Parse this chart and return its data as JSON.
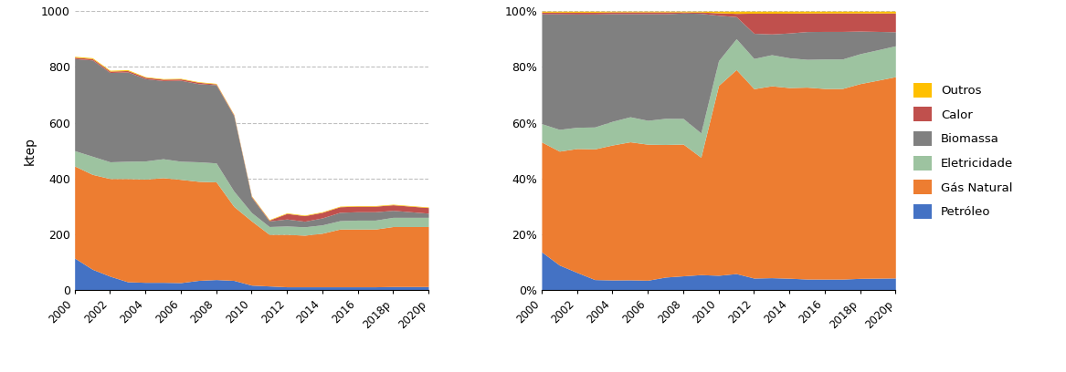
{
  "years": [
    2000,
    2001,
    2002,
    2003,
    2004,
    2005,
    2006,
    2007,
    2008,
    2009,
    2010,
    2011,
    2012,
    2013,
    2014,
    2015,
    2016,
    2017,
    2018,
    2019,
    2020
  ],
  "petroleo": [
    115,
    75,
    50,
    30,
    28,
    28,
    27,
    35,
    38,
    35,
    18,
    15,
    12,
    12,
    12,
    12,
    12,
    12,
    13,
    13,
    13
  ],
  "gas_natural": [
    330,
    340,
    350,
    370,
    370,
    375,
    370,
    355,
    350,
    265,
    230,
    185,
    188,
    185,
    192,
    207,
    207,
    207,
    215,
    215,
    215
  ],
  "eletricidade": [
    55,
    65,
    60,
    62,
    65,
    68,
    65,
    70,
    68,
    55,
    30,
    28,
    30,
    30,
    30,
    30,
    32,
    32,
    33,
    33,
    33
  ],
  "biomassa": [
    330,
    345,
    320,
    320,
    295,
    280,
    290,
    280,
    280,
    270,
    55,
    20,
    25,
    20,
    25,
    30,
    30,
    30,
    25,
    20,
    15
  ],
  "calor": [
    5,
    5,
    5,
    5,
    5,
    5,
    5,
    5,
    3,
    3,
    3,
    3,
    20,
    20,
    20,
    20,
    20,
    20,
    20,
    20,
    20
  ],
  "outros": [
    3,
    3,
    3,
    3,
    2,
    2,
    2,
    2,
    2,
    2,
    2,
    2,
    2,
    2,
    2,
    2,
    2,
    2,
    2,
    2,
    2
  ],
  "colors": {
    "petroleo": "#4472C4",
    "gas_natural": "#ED7D31",
    "eletricidade": "#9DC3A0",
    "biomassa": "#808080",
    "calor": "#C0504D",
    "outros": "#FFC000"
  },
  "labels": {
    "petroleo": "Petróleo",
    "gas_natural": "Gás Natural",
    "eletricidade": "Eletricidade",
    "biomassa": "Biomassa",
    "calor": "Calor",
    "outros": "Outros"
  },
  "ylabel_left": "ktep",
  "ylim_left": [
    0,
    1000
  ],
  "yticks_left": [
    0,
    200,
    400,
    600,
    800,
    1000
  ],
  "x_tick_years": [
    2000,
    2002,
    2004,
    2006,
    2008,
    2010,
    2012,
    2014,
    2016,
    2018,
    2020
  ],
  "x_tick_labels": [
    "2000",
    "2002",
    "2004",
    "2006",
    "2008",
    "2010",
    "2012",
    "2014",
    "2016",
    "2018p",
    "2020p"
  ]
}
